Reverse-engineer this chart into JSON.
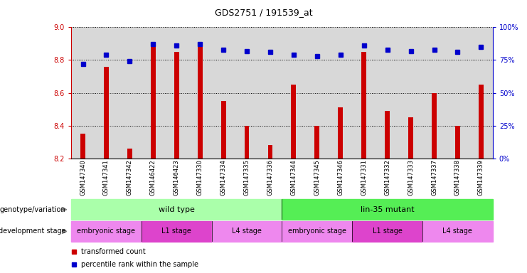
{
  "title": "GDS2751 / 191539_at",
  "samples": [
    "GSM147340",
    "GSM147341",
    "GSM147342",
    "GSM146422",
    "GSM146423",
    "GSM147330",
    "GSM147334",
    "GSM147335",
    "GSM147336",
    "GSM147344",
    "GSM147345",
    "GSM147346",
    "GSM147331",
    "GSM147332",
    "GSM147333",
    "GSM147337",
    "GSM147338",
    "GSM147339"
  ],
  "transformed_count": [
    8.35,
    8.76,
    8.26,
    8.9,
    8.85,
    8.88,
    8.55,
    8.4,
    8.28,
    8.65,
    8.4,
    8.51,
    8.85,
    8.49,
    8.45,
    8.6,
    8.4,
    8.65
  ],
  "percentile_rank": [
    72,
    79,
    74,
    87,
    86,
    87,
    83,
    82,
    81,
    79,
    78,
    79,
    86,
    83,
    82,
    83,
    81,
    85
  ],
  "ylim_left": [
    8.2,
    9.0
  ],
  "ylim_right": [
    0,
    100
  ],
  "yticks_left": [
    8.2,
    8.4,
    8.6,
    8.8,
    9.0
  ],
  "yticks_right": [
    0,
    25,
    50,
    75,
    100
  ],
  "bar_color": "#cc0000",
  "dot_color": "#0000cc",
  "bar_bg_color": "#d8d8d8",
  "genotype_wt_color": "#aaffaa",
  "genotype_mut_color": "#55ee55",
  "dev_embryo_color": "#ee88ee",
  "dev_l1_color": "#dd44cc",
  "dev_l4_color": "#ee88ee",
  "dev_stage_row": [
    {
      "label": "embryonic stage",
      "start": 0,
      "end": 3
    },
    {
      "label": "L1 stage",
      "start": 3,
      "end": 6
    },
    {
      "label": "L4 stage",
      "start": 6,
      "end": 9
    },
    {
      "label": "embryonic stage",
      "start": 9,
      "end": 12
    },
    {
      "label": "L1 stage",
      "start": 12,
      "end": 15
    },
    {
      "label": "L4 stage",
      "start": 15,
      "end": 18
    }
  ],
  "left_axis_color": "#cc0000",
  "right_axis_color": "#0000cc",
  "genotype_label": "genotype/variation",
  "devstage_label": "development stage",
  "legend_bar_label": "transformed count",
  "legend_dot_label": "percentile rank within the sample"
}
